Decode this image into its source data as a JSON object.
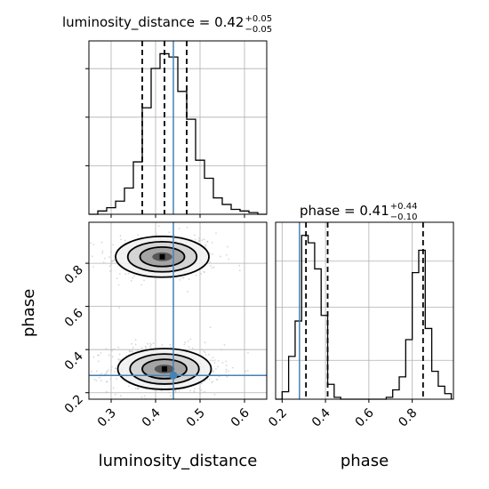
{
  "chart_data": [
    {
      "type": "histogram",
      "parameter": "luminosity_distance",
      "title": {
        "name": "luminosity_distance",
        "value": "0.42",
        "plus": "+0.05",
        "minus": "−0.05"
      },
      "xlim": [
        0.25,
        0.65
      ],
      "bins": [
        0.25,
        0.27,
        0.29,
        0.31,
        0.33,
        0.35,
        0.37,
        0.39,
        0.41,
        0.43,
        0.45,
        0.47,
        0.49,
        0.51,
        0.53,
        0.55,
        0.57,
        0.59,
        0.61,
        0.63,
        0.65
      ],
      "counts": [
        0,
        2,
        4,
        8,
        16,
        32,
        65,
        89,
        98,
        96,
        75,
        58,
        33,
        22,
        10,
        6,
        3,
        2,
        1,
        0
      ],
      "quantiles": [
        0.37,
        0.42,
        0.47
      ],
      "truth": 0.44,
      "grid": true
    },
    {
      "type": "histogram",
      "parameter": "phase",
      "title": {
        "name": "phase",
        "value": "0.41",
        "plus": "+0.44",
        "minus": "−0.10"
      },
      "xlim": [
        0.17,
        0.99
      ],
      "bins": [
        0.17,
        0.2,
        0.23,
        0.26,
        0.29,
        0.32,
        0.35,
        0.38,
        0.41,
        0.44,
        0.47,
        0.5,
        0.53,
        0.56,
        0.59,
        0.62,
        0.65,
        0.68,
        0.71,
        0.74,
        0.77,
        0.8,
        0.83,
        0.86,
        0.89,
        0.92,
        0.95,
        0.98
      ],
      "counts": [
        0,
        4,
        23,
        42,
        88,
        84,
        70,
        45,
        8,
        1,
        0,
        0,
        0,
        0,
        0,
        0,
        0,
        1,
        5,
        12,
        32,
        68,
        80,
        38,
        15,
        7,
        3
      ],
      "quantiles": [
        0.31,
        0.41,
        0.85
      ],
      "truth": 0.28,
      "grid": true
    },
    {
      "type": "scatter_contour",
      "x_param": "luminosity_distance",
      "y_param": "phase",
      "xlim": [
        0.25,
        0.65
      ],
      "ylim": [
        0.17,
        0.99
      ],
      "modes": [
        {
          "x": 0.415,
          "y": 0.83,
          "sx": 0.05,
          "sy": 0.045,
          "weight": 0.38
        },
        {
          "x": 0.42,
          "y": 0.31,
          "sx": 0.05,
          "sy": 0.045,
          "weight": 0.62
        }
      ],
      "truth": {
        "x": 0.44,
        "y": 0.28
      },
      "grid": true
    }
  ],
  "axes": {
    "x_labels": [
      "luminosity_distance",
      "phase"
    ],
    "y_label": "phase",
    "x_ticks_distance": [
      "0.3",
      "0.4",
      "0.5",
      "0.6"
    ],
    "x_ticks_phase": [
      "0.2",
      "0.4",
      "0.6",
      "0.8"
    ],
    "y_ticks_phase": [
      "0.2",
      "0.4",
      "0.6",
      "0.8"
    ]
  },
  "colors": {
    "truth": "#4682b4",
    "line": "#000000",
    "grid": "#b0b0b0",
    "points": "#bdbdbd"
  }
}
